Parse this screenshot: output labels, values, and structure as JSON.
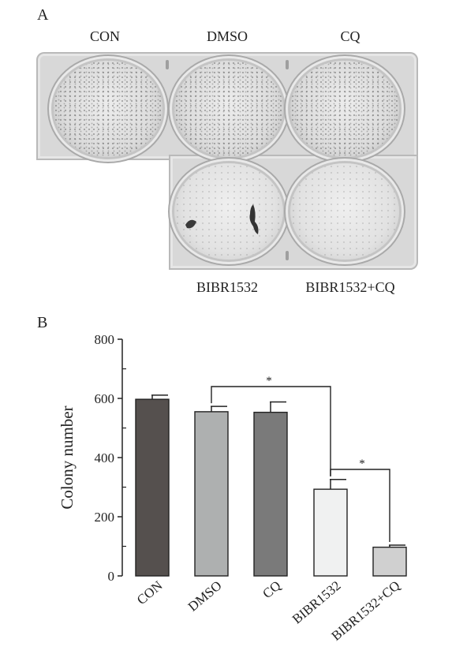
{
  "panel_a": {
    "letter": "A",
    "wells": [
      {
        "label": "CON"
      },
      {
        "label": "DMSO"
      },
      {
        "label": "CQ"
      },
      {
        "label": "BIBR1532"
      },
      {
        "label": "BIBR1532+CQ"
      }
    ]
  },
  "panel_b": {
    "letter": "B"
  },
  "chart_data": {
    "type": "bar",
    "categories": [
      "CON",
      "DMSO",
      "CQ",
      "BIBR1532",
      "BIBR1532+CQ"
    ],
    "values": [
      597,
      555,
      553,
      293,
      97
    ],
    "error": [
      14,
      18,
      35,
      33,
      7
    ],
    "bar_colors": [
      "#55504e",
      "#aeb0b0",
      "#7a7a7a",
      "#f0f1f1",
      "#d0d0d0"
    ],
    "title": "",
    "xlabel": "",
    "ylabel": "Colony number",
    "ylim": [
      0,
      800
    ],
    "yticks": [
      0,
      200,
      400,
      600,
      800
    ],
    "grid": false,
    "significance": [
      {
        "from": "DMSO",
        "to": "BIBR1532",
        "label": "*"
      },
      {
        "from": "BIBR1532",
        "to": "BIBR1532+CQ",
        "label": "*"
      }
    ]
  }
}
